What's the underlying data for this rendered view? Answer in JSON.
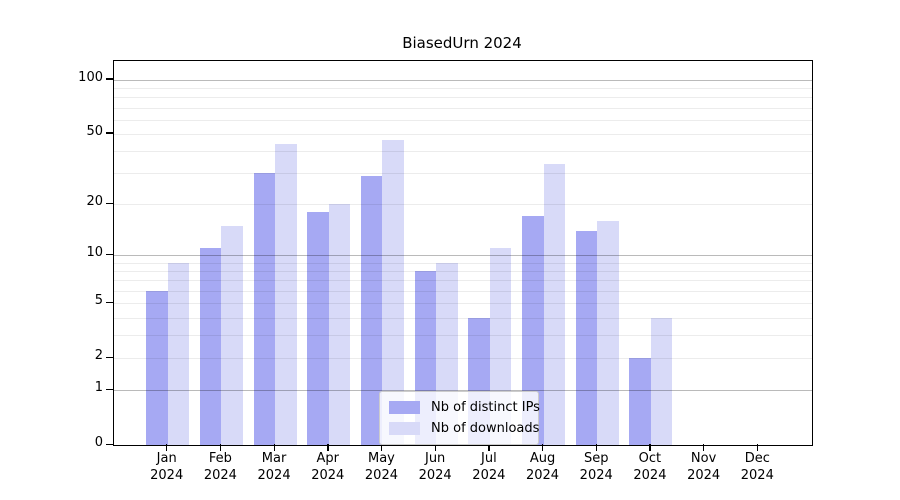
{
  "chart_data": {
    "type": "bar",
    "title": "BiasedUrn 2024",
    "categories": [
      {
        "month": "Jan",
        "year": "2024"
      },
      {
        "month": "Feb",
        "year": "2024"
      },
      {
        "month": "Mar",
        "year": "2024"
      },
      {
        "month": "Apr",
        "year": "2024"
      },
      {
        "month": "May",
        "year": "2024"
      },
      {
        "month": "Jun",
        "year": "2024"
      },
      {
        "month": "Jul",
        "year": "2024"
      },
      {
        "month": "Aug",
        "year": "2024"
      },
      {
        "month": "Sep",
        "year": "2024"
      },
      {
        "month": "Oct",
        "year": "2024"
      },
      {
        "month": "Nov",
        "year": "2024"
      },
      {
        "month": "Dec",
        "year": "2024"
      }
    ],
    "series": [
      {
        "name": "Nb of distinct IPs",
        "color": "#a6a9f3",
        "values": [
          6,
          11,
          30,
          18,
          29,
          8,
          4,
          17,
          14,
          2,
          0,
          0
        ]
      },
      {
        "name": "Nb of downloads",
        "color": "#d8daf8",
        "values": [
          9,
          15,
          44,
          20,
          46,
          9,
          11,
          34,
          16,
          4,
          0,
          0
        ]
      }
    ],
    "xlabel": "",
    "ylabel": "",
    "yscale": "log1p",
    "ylim": [
      0,
      127
    ],
    "yticks": [
      0,
      1,
      2,
      5,
      10,
      20,
      50,
      100
    ],
    "major_gridlines": [
      1,
      10,
      100
    ],
    "minor_gridlines": [
      2,
      3,
      4,
      5,
      6,
      7,
      8,
      9,
      20,
      30,
      40,
      50,
      60,
      70,
      80,
      90
    ],
    "grid": true,
    "legend_position": "lower center"
  }
}
